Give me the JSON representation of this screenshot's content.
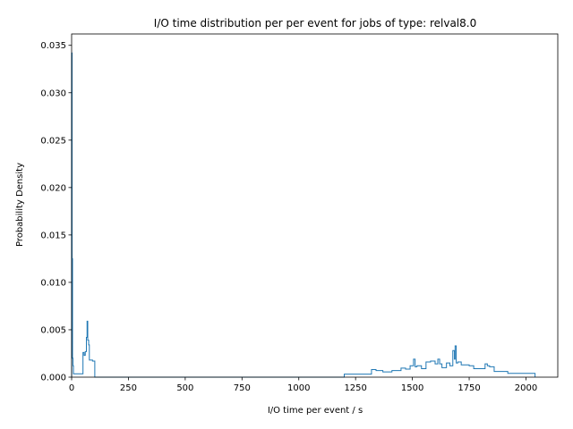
{
  "chart_data": {
    "type": "histogram",
    "title": "I/O time distribution per per event for jobs of type: relval8.0",
    "xlabel": "I/O time per event / s",
    "ylabel": "Probability Density",
    "xlim": [
      0,
      2140
    ],
    "ylim": [
      0,
      0.0362
    ],
    "xticks": [
      0,
      250,
      500,
      750,
      1000,
      1250,
      1500,
      1750,
      2000
    ],
    "xtick_labels": [
      "0",
      "250",
      "500",
      "750",
      "1000",
      "1250",
      "1500",
      "1750",
      "2000"
    ],
    "yticks": [
      0,
      0.005,
      0.01,
      0.015,
      0.02,
      0.025,
      0.03,
      0.035
    ],
    "ytick_labels": [
      "0.000",
      "0.005",
      "0.010",
      "0.015",
      "0.020",
      "0.025",
      "0.030",
      "0.035"
    ],
    "grid": false,
    "legend": "none",
    "color": "#1f77b4",
    "series": [
      {
        "edges": [
          0,
          2,
          4,
          6,
          8,
          50,
          55,
          60,
          65,
          68,
          71,
          75,
          78,
          82,
          92,
          102,
          1200,
          1320,
          1340,
          1370,
          1410,
          1450,
          1470,
          1490,
          1505,
          1512,
          1520,
          1540,
          1560,
          1580,
          1600,
          1612,
          1620,
          1630,
          1650,
          1665,
          1678,
          1685,
          1688,
          1693,
          1700,
          1715,
          1750,
          1770,
          1810,
          1820,
          1830,
          1840,
          1860,
          1920,
          2040
        ],
        "densities": [
          0.0342,
          0.0125,
          0.002,
          0.0012,
          0.00035,
          0.0026,
          0.0023,
          0.0027,
          0.0042,
          0.0059,
          0.0039,
          0.0034,
          0.0018,
          0.0018,
          0.0017,
          0.0,
          0.00032,
          0.0008,
          0.0007,
          0.00055,
          0.0007,
          0.00095,
          0.00085,
          0.0012,
          0.0019,
          0.0011,
          0.0012,
          0.0009,
          0.0016,
          0.0017,
          0.0014,
          0.0019,
          0.0014,
          0.001,
          0.0015,
          0.0012,
          0.0028,
          0.0019,
          0.0033,
          0.0015,
          0.0016,
          0.0013,
          0.0012,
          0.0009,
          0.0009,
          0.0014,
          0.0012,
          0.0011,
          0.0006,
          0.0004
        ]
      }
    ]
  }
}
